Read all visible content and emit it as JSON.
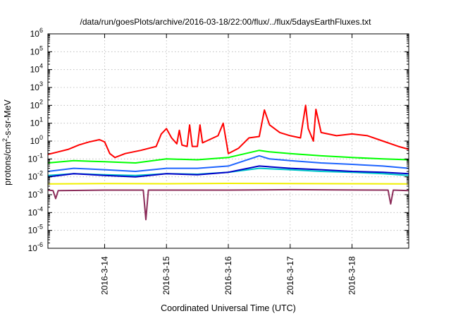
{
  "chart_data": {
    "type": "line",
    "title": "/data/run/goesPlots/archive/2016-03-18/22:00/flux/../flux/5daysEarthFluxes.txt",
    "xlabel": "Coordinated Universal Time (UTC)",
    "ylabel": {
      "pre": "protons/cm",
      "sup": "2",
      "post": "-s-sr-MeV"
    },
    "x_range": [
      "2016-03-13T02:00",
      "2016-03-18T22:00"
    ],
    "x_ticks": [
      "2016-3-14",
      "2016-3-15",
      "2016-3-16",
      "2016-3-17",
      "2016-3-18"
    ],
    "y_scale": "log",
    "y_range": [
      1e-06,
      1000000.0
    ],
    "y_ticks": [
      {
        "base": "10",
        "exp": "-6"
      },
      {
        "base": "10",
        "exp": "-5"
      },
      {
        "base": "10",
        "exp": "-4"
      },
      {
        "base": "10",
        "exp": "-3"
      },
      {
        "base": "10",
        "exp": "-2"
      },
      {
        "base": "10",
        "exp": "-1"
      },
      {
        "base": "10",
        "exp": "0"
      },
      {
        "base": "10",
        "exp": "1"
      },
      {
        "base": "10",
        "exp": "2"
      },
      {
        "base": "10",
        "exp": "3"
      },
      {
        "base": "10",
        "exp": "4"
      },
      {
        "base": "10",
        "exp": "5"
      },
      {
        "base": "10",
        "exp": "6"
      }
    ],
    "grid": true,
    "series": [
      {
        "color": "#ff0000",
        "points": [
          [
            "2016-03-13T02:00",
            0.18
          ],
          [
            "2016-03-13T06:00",
            0.25
          ],
          [
            "2016-03-13T10:00",
            0.35
          ],
          [
            "2016-03-13T14:00",
            0.6
          ],
          [
            "2016-03-13T18:00",
            0.9
          ],
          [
            "2016-03-13T22:00",
            1.2
          ],
          [
            "2016-03-14T00:00",
            0.9
          ],
          [
            "2016-03-14T02:00",
            0.2
          ],
          [
            "2016-03-14T04:00",
            0.12
          ],
          [
            "2016-03-14T08:00",
            0.2
          ],
          [
            "2016-03-14T14:00",
            0.3
          ],
          [
            "2016-03-14T20:00",
            0.5
          ],
          [
            "2016-03-14T22:00",
            2.5
          ],
          [
            "2016-03-15T00:00",
            5.0
          ],
          [
            "2016-03-15T02:00",
            1.5
          ],
          [
            "2016-03-15T04:00",
            0.7
          ],
          [
            "2016-03-15T05:00",
            4.0
          ],
          [
            "2016-03-15T06:00",
            0.6
          ],
          [
            "2016-03-15T08:00",
            0.5
          ],
          [
            "2016-03-15T09:00",
            8.0
          ],
          [
            "2016-03-15T10:00",
            0.5
          ],
          [
            "2016-03-15T12:00",
            0.5
          ],
          [
            "2016-03-15T13:00",
            8.0
          ],
          [
            "2016-03-15T14:00",
            0.8
          ],
          [
            "2016-03-15T20:00",
            2.0
          ],
          [
            "2016-03-15T22:00",
            10.0
          ],
          [
            "2016-03-16T00:00",
            0.2
          ],
          [
            "2016-03-16T04:00",
            0.4
          ],
          [
            "2016-03-16T08:00",
            1.5
          ],
          [
            "2016-03-16T12:00",
            1.8
          ],
          [
            "2016-03-16T14:00",
            55.0
          ],
          [
            "2016-03-16T16:00",
            8.0
          ],
          [
            "2016-03-16T20:00",
            3.0
          ],
          [
            "2016-03-17T00:00",
            2.0
          ],
          [
            "2016-03-17T04:00",
            1.5
          ],
          [
            "2016-03-17T06:00",
            100.0
          ],
          [
            "2016-03-17T07:00",
            5.0
          ],
          [
            "2016-03-17T09:00",
            1.0
          ],
          [
            "2016-03-17T10:00",
            60.0
          ],
          [
            "2016-03-17T12:00",
            3.0
          ],
          [
            "2016-03-17T18:00",
            2.0
          ],
          [
            "2016-03-18T00:00",
            2.5
          ],
          [
            "2016-03-18T06:00",
            2.0
          ],
          [
            "2016-03-18T12:00",
            1.0
          ],
          [
            "2016-03-18T18:00",
            0.5
          ],
          [
            "2016-03-18T22:00",
            0.35
          ]
        ]
      },
      {
        "color": "#00ff00",
        "points": [
          [
            "2016-03-13T02:00",
            0.06
          ],
          [
            "2016-03-13T12:00",
            0.08
          ],
          [
            "2016-03-14T00:00",
            0.07
          ],
          [
            "2016-03-14T12:00",
            0.06
          ],
          [
            "2016-03-15T00:00",
            0.1
          ],
          [
            "2016-03-15T12:00",
            0.09
          ],
          [
            "2016-03-16T00:00",
            0.12
          ],
          [
            "2016-03-16T12:00",
            0.3
          ],
          [
            "2016-03-16T16:00",
            0.25
          ],
          [
            "2016-03-17T00:00",
            0.2
          ],
          [
            "2016-03-17T12:00",
            0.15
          ],
          [
            "2016-03-18T00:00",
            0.12
          ],
          [
            "2016-03-18T12:00",
            0.1
          ],
          [
            "2016-03-18T22:00",
            0.09
          ]
        ]
      },
      {
        "color": "#00c8c8",
        "points": [
          [
            "2016-03-13T02:00",
            0.012
          ],
          [
            "2016-03-13T12:00",
            0.015
          ],
          [
            "2016-03-14T00:00",
            0.013
          ],
          [
            "2016-03-14T12:00",
            0.012
          ],
          [
            "2016-03-15T00:00",
            0.015
          ],
          [
            "2016-03-15T12:00",
            0.014
          ],
          [
            "2016-03-16T00:00",
            0.018
          ],
          [
            "2016-03-16T12:00",
            0.03
          ],
          [
            "2016-03-17T00:00",
            0.025
          ],
          [
            "2016-03-17T12:00",
            0.02
          ],
          [
            "2016-03-18T00:00",
            0.018
          ],
          [
            "2016-03-18T12:00",
            0.015
          ],
          [
            "2016-03-18T22:00",
            0.012
          ]
        ]
      },
      {
        "color": "#1e64ff",
        "points": [
          [
            "2016-03-13T02:00",
            0.02
          ],
          [
            "2016-03-13T12:00",
            0.03
          ],
          [
            "2016-03-14T00:00",
            0.025
          ],
          [
            "2016-03-14T12:00",
            0.02
          ],
          [
            "2016-03-15T00:00",
            0.03
          ],
          [
            "2016-03-15T12:00",
            0.03
          ],
          [
            "2016-03-16T00:00",
            0.04
          ],
          [
            "2016-03-16T12:00",
            0.15
          ],
          [
            "2016-03-16T16:00",
            0.1
          ],
          [
            "2016-03-17T00:00",
            0.08
          ],
          [
            "2016-03-17T12:00",
            0.06
          ],
          [
            "2016-03-18T00:00",
            0.05
          ],
          [
            "2016-03-18T12:00",
            0.04
          ],
          [
            "2016-03-18T22:00",
            0.03
          ]
        ]
      },
      {
        "color": "#0000c8",
        "points": [
          [
            "2016-03-13T02:00",
            0.01
          ],
          [
            "2016-03-13T12:00",
            0.015
          ],
          [
            "2016-03-14T00:00",
            0.012
          ],
          [
            "2016-03-14T12:00",
            0.01
          ],
          [
            "2016-03-15T00:00",
            0.015
          ],
          [
            "2016-03-15T12:00",
            0.013
          ],
          [
            "2016-03-16T00:00",
            0.018
          ],
          [
            "2016-03-16T12:00",
            0.04
          ],
          [
            "2016-03-17T00:00",
            0.03
          ],
          [
            "2016-03-17T12:00",
            0.025
          ],
          [
            "2016-03-18T00:00",
            0.02
          ],
          [
            "2016-03-18T12:00",
            0.018
          ],
          [
            "2016-03-18T22:00",
            0.015
          ]
        ]
      },
      {
        "color": "#f0f000",
        "points": [
          [
            "2016-03-13T02:00",
            0.004
          ],
          [
            "2016-03-14T00:00",
            0.0042
          ],
          [
            "2016-03-15T00:00",
            0.0041
          ],
          [
            "2016-03-16T00:00",
            0.0043
          ],
          [
            "2016-03-17T00:00",
            0.0042
          ],
          [
            "2016-03-18T00:00",
            0.0041
          ],
          [
            "2016-03-18T22:00",
            0.004
          ]
        ]
      },
      {
        "color": "#8c2d5a",
        "points": [
          [
            "2016-03-13T02:00",
            0.0018
          ],
          [
            "2016-03-13T04:00",
            0.0017
          ],
          [
            "2016-03-13T05:00",
            0.0006
          ],
          [
            "2016-03-13T06:00",
            0.0017
          ],
          [
            "2016-03-14T00:00",
            0.0018
          ],
          [
            "2016-03-14T15:00",
            0.0018
          ],
          [
            "2016-03-14T16:00",
            4e-05
          ],
          [
            "2016-03-14T17:00",
            0.0018
          ],
          [
            "2016-03-16T00:00",
            0.0018
          ],
          [
            "2016-03-17T00:00",
            0.0019
          ],
          [
            "2016-03-18T14:00",
            0.0018
          ],
          [
            "2016-03-18T15:00",
            0.0003
          ],
          [
            "2016-03-18T16:00",
            0.0018
          ],
          [
            "2016-03-18T22:00",
            0.0017
          ]
        ]
      }
    ]
  }
}
